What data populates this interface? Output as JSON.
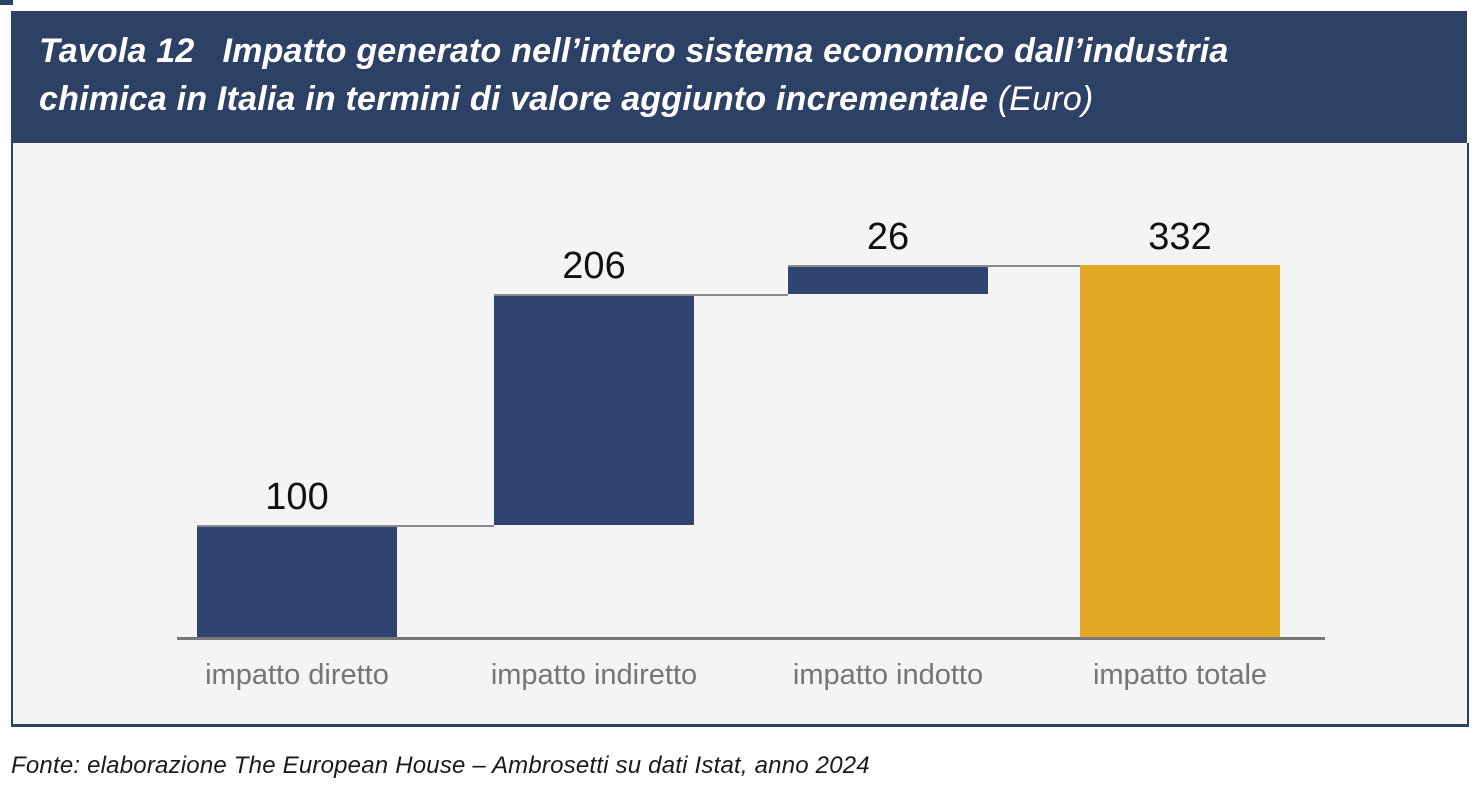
{
  "header": {
    "label": "Tavola 12",
    "title_line1": "Impatto generato nell’intero sistema economico dall’industria",
    "title_line2": "chimica in Italia in termini di valore aggiunto incrementale",
    "title_suffix": "(Euro)"
  },
  "footer": {
    "source": "Fonte: elaborazione The European House – Ambrosetti su dati Istat, anno 2024"
  },
  "colors": {
    "navy_band": "#2D4066",
    "bar_blue": "#2F446E",
    "bar_orange": "#E3A726",
    "panel_bg": "#F4F4F5",
    "connector_gray": "#8A8A8A",
    "axis_gray": "#787878",
    "category_label_gray": "#757575",
    "value_label_black": "#111111",
    "title_white": "#FFFFFF"
  },
  "chart_data": {
    "type": "bar",
    "subtype": "waterfall",
    "title": "Impatto generato nell’intero sistema economico dall’industria chimica in Italia in termini di valore aggiunto incrementale (Euro)",
    "categories": [
      "impatto diretto",
      "impatto indiretto",
      "impatto indotto",
      "impatto totale"
    ],
    "values": [
      100,
      206,
      26,
      332
    ],
    "kinds": [
      "delta",
      "delta",
      "delta",
      "total"
    ],
    "data_labels": [
      "100",
      "206",
      "26",
      "332"
    ],
    "bar_colors": [
      "#2F446E",
      "#2F446E",
      "#2F446E",
      "#E3A726"
    ],
    "cumulative_levels": [
      100,
      306,
      332,
      332
    ],
    "xlabel": "",
    "ylabel": "",
    "ylim": [
      0,
      332
    ],
    "grid": false,
    "legend": false,
    "connector_lines": true,
    "baseline_axis": true,
    "data_labels_position": "above-bar",
    "source_note": "Fonte: elaborazione The European House – Ambrosetti su dati Istat, anno 2024"
  }
}
